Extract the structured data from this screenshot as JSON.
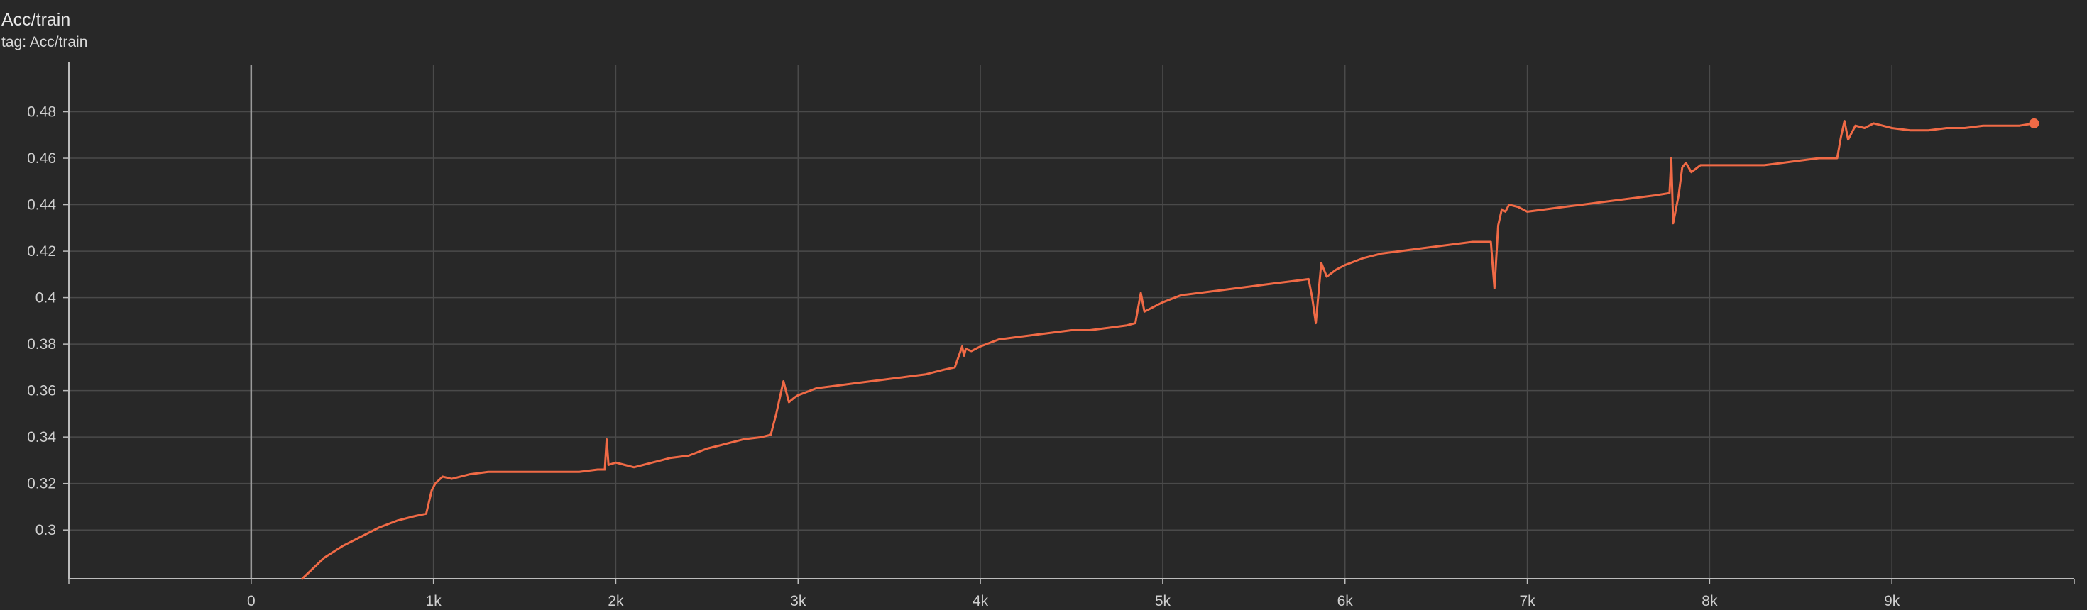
{
  "header": {
    "title": "Acc/train",
    "tag_label": "tag: Acc/train"
  },
  "colors": {
    "background": "#282828",
    "grid": "#4a4a4a",
    "axis": "#bdbdbd",
    "zero_line": "#9a9a9a",
    "series": "#f06a46"
  },
  "chart_data": {
    "type": "line",
    "title": "Acc/train",
    "xlabel": "",
    "ylabel": "",
    "xlim": [
      -1000,
      10000
    ],
    "ylim": [
      0.279,
      0.5
    ],
    "grid": true,
    "x_ticks": [
      0,
      1000,
      2000,
      3000,
      4000,
      5000,
      6000,
      7000,
      8000,
      9000
    ],
    "x_tick_labels": [
      "0",
      "1k",
      "2k",
      "3k",
      "4k",
      "5k",
      "6k",
      "7k",
      "8k",
      "9k"
    ],
    "y_ticks": [
      0.3,
      0.32,
      0.34,
      0.36,
      0.38,
      0.4,
      0.42,
      0.44,
      0.46,
      0.48
    ],
    "y_tick_labels": [
      "0.3",
      "0.32",
      "0.34",
      "0.36",
      "0.38",
      "0.4",
      "0.42",
      "0.44",
      "0.46",
      "0.48"
    ],
    "series": [
      {
        "color": "#f06a46",
        "last_point_marker": true,
        "x": [
          280,
          400,
          500,
          600,
          700,
          800,
          900,
          960,
          990,
          1010,
          1050,
          1100,
          1200,
          1300,
          1400,
          1500,
          1600,
          1700,
          1800,
          1900,
          1940,
          1950,
          1960,
          2000,
          2050,
          2100,
          2150,
          2200,
          2250,
          2300,
          2400,
          2500,
          2600,
          2700,
          2800,
          2850,
          2880,
          2920,
          2950,
          2980,
          3000,
          3100,
          3200,
          3300,
          3400,
          3500,
          3600,
          3700,
          3800,
          3860,
          3900,
          3910,
          3920,
          3950,
          4000,
          4100,
          4200,
          4300,
          4400,
          4500,
          4600,
          4700,
          4800,
          4850,
          4880,
          4900,
          4950,
          5000,
          5100,
          5200,
          5300,
          5400,
          5500,
          5600,
          5700,
          5800,
          5820,
          5840,
          5870,
          5900,
          5950,
          6000,
          6100,
          6200,
          6300,
          6400,
          6500,
          6600,
          6700,
          6800,
          6820,
          6840,
          6860,
          6880,
          6900,
          6950,
          7000,
          7100,
          7200,
          7300,
          7400,
          7500,
          7600,
          7700,
          7780,
          7790,
          7800,
          7830,
          7850,
          7870,
          7900,
          7950,
          8000,
          8100,
          8200,
          8300,
          8400,
          8500,
          8600,
          8700,
          8720,
          8740,
          8760,
          8800,
          8850,
          8900,
          8950,
          9000,
          9100,
          9200,
          9300,
          9400,
          9500,
          9600,
          9700,
          9780
        ],
        "values": [
          0.279,
          0.288,
          0.293,
          0.297,
          0.301,
          0.304,
          0.306,
          0.307,
          0.317,
          0.32,
          0.323,
          0.322,
          0.324,
          0.325,
          0.325,
          0.325,
          0.325,
          0.325,
          0.325,
          0.326,
          0.326,
          0.339,
          0.328,
          0.329,
          0.328,
          0.327,
          0.328,
          0.329,
          0.33,
          0.331,
          0.332,
          0.335,
          0.337,
          0.339,
          0.34,
          0.341,
          0.35,
          0.364,
          0.355,
          0.357,
          0.358,
          0.361,
          0.362,
          0.363,
          0.364,
          0.365,
          0.366,
          0.367,
          0.369,
          0.37,
          0.379,
          0.375,
          0.378,
          0.377,
          0.379,
          0.382,
          0.383,
          0.384,
          0.385,
          0.386,
          0.386,
          0.387,
          0.388,
          0.389,
          0.402,
          0.394,
          0.396,
          0.398,
          0.401,
          0.402,
          0.403,
          0.404,
          0.405,
          0.406,
          0.407,
          0.408,
          0.4,
          0.389,
          0.415,
          0.409,
          0.412,
          0.414,
          0.417,
          0.419,
          0.42,
          0.421,
          0.422,
          0.423,
          0.424,
          0.424,
          0.404,
          0.431,
          0.438,
          0.437,
          0.44,
          0.439,
          0.437,
          0.438,
          0.439,
          0.44,
          0.441,
          0.442,
          0.443,
          0.444,
          0.445,
          0.46,
          0.432,
          0.444,
          0.456,
          0.458,
          0.454,
          0.457,
          0.457,
          0.457,
          0.457,
          0.457,
          0.458,
          0.459,
          0.46,
          0.46,
          0.469,
          0.476,
          0.468,
          0.474,
          0.473,
          0.475,
          0.474,
          0.473,
          0.472,
          0.472,
          0.473,
          0.473,
          0.474,
          0.474,
          0.474,
          0.475
        ]
      }
    ]
  }
}
